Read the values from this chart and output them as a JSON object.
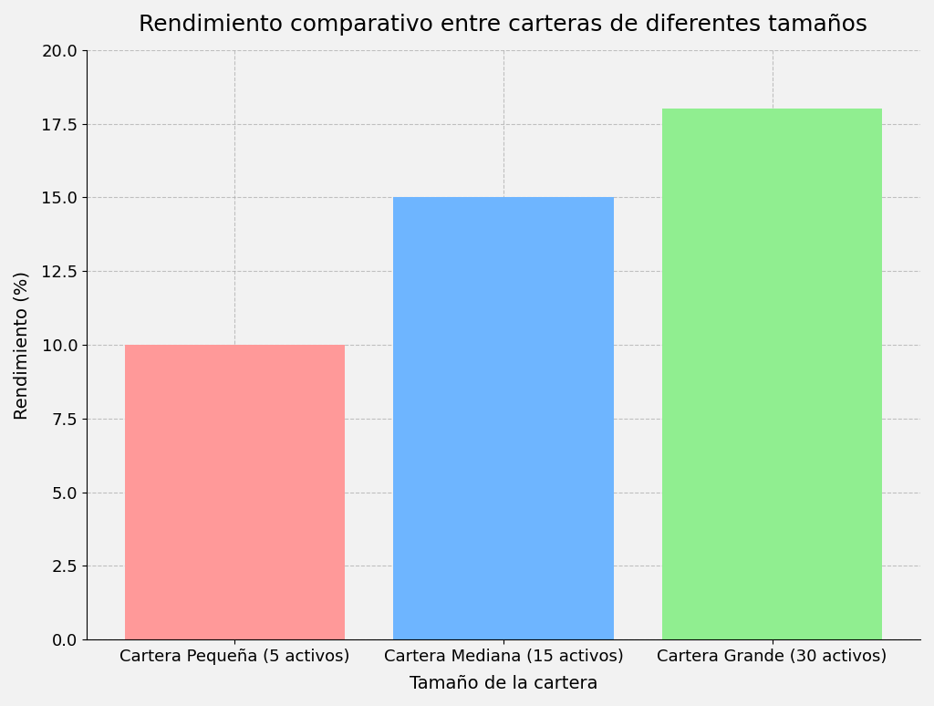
{
  "title": "Rendimiento comparativo entre carteras de diferentes tamaños",
  "categories": [
    "Cartera Pequeña (5 activos)",
    "Cartera Mediana (15 activos)",
    "Cartera Grande (30 activos)"
  ],
  "values": [
    10.0,
    15.0,
    18.0
  ],
  "bar_colors": [
    "#FF9999",
    "#6EB5FF",
    "#90EE90"
  ],
  "xlabel": "Tamaño de la cartera",
  "ylabel": "Rendimiento (%)",
  "ylim": [
    0,
    20.0
  ],
  "yticks": [
    0.0,
    2.5,
    5.0,
    7.5,
    10.0,
    12.5,
    15.0,
    17.5,
    20.0
  ],
  "background_color": "#F2F2F2",
  "grid_color": "#AAAAAA",
  "title_fontsize": 18,
  "axis_label_fontsize": 14,
  "tick_fontsize": 13,
  "bar_width": 0.82
}
